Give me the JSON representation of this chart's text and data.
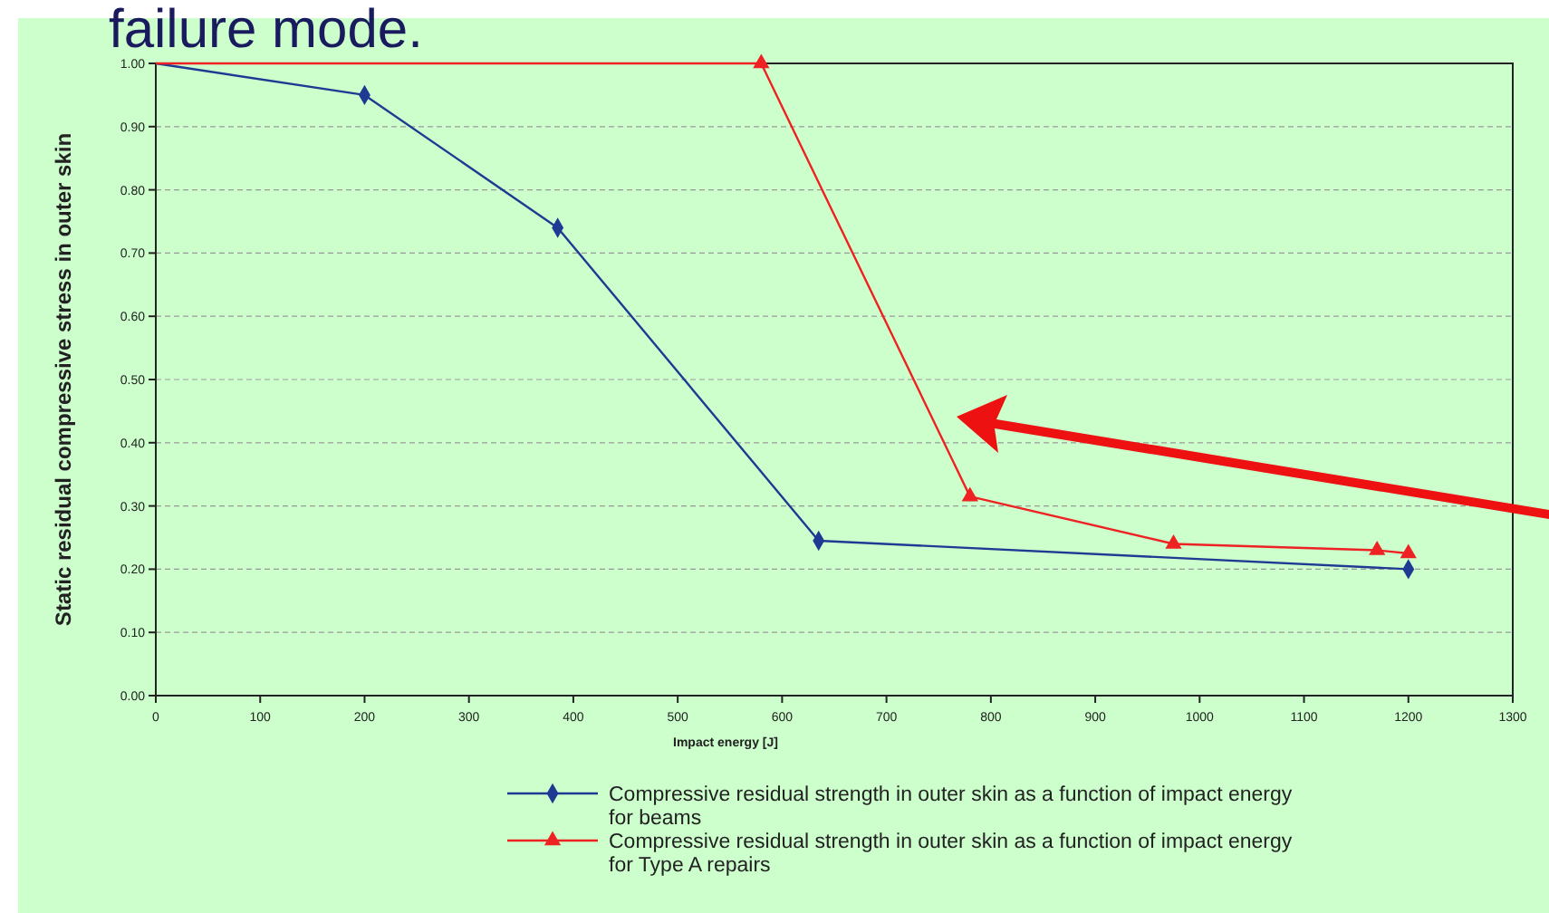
{
  "chart_data": {
    "type": "line",
    "title": "failure mode.",
    "xlabel": "Impact energy [J]",
    "ylabel": "Static residual compressive stress in outer skin",
    "xlim": [
      0,
      1300
    ],
    "xticks": [
      0,
      100,
      200,
      300,
      400,
      500,
      600,
      700,
      800,
      900,
      1000,
      1100,
      1200,
      1300
    ],
    "ylim": [
      0,
      1
    ],
    "yticks": [
      {
        "value": 0,
        "label": "0.00"
      },
      {
        "value": 0.1,
        "label": "0.10"
      },
      {
        "value": 0.2,
        "label": "0.20"
      },
      {
        "value": 0.3,
        "label": "0.30"
      },
      {
        "value": 0.4,
        "label": "0.40"
      },
      {
        "value": 0.5,
        "label": "0.50"
      },
      {
        "value": 0.6,
        "label": "0.60"
      },
      {
        "value": 0.7,
        "label": "0.70"
      },
      {
        "value": 0.8,
        "label": "0.80"
      },
      {
        "value": 0.9,
        "label": "0.90"
      },
      {
        "value": 1,
        "label": "1.00"
      }
    ],
    "grid": "y",
    "legend": "bottom",
    "series": [
      {
        "name": "Compressive residual strength in outer skin as a function of impact energy for beams",
        "color": "#1f3a93",
        "marker": "diamond",
        "x": [
          0,
          200,
          385,
          635,
          1200
        ],
        "values": [
          1.0,
          0.95,
          0.74,
          0.245,
          0.2
        ]
      },
      {
        "name": "Compressive residual strength in outer skin as a function of impact energy for Type A repairs",
        "color": "#ee2222",
        "marker": "triangle",
        "x": [
          0,
          580,
          780,
          975,
          1170,
          1200
        ],
        "values": [
          1.0,
          1.0,
          0.315,
          0.24,
          0.23,
          0.225
        ]
      }
    ]
  }
}
